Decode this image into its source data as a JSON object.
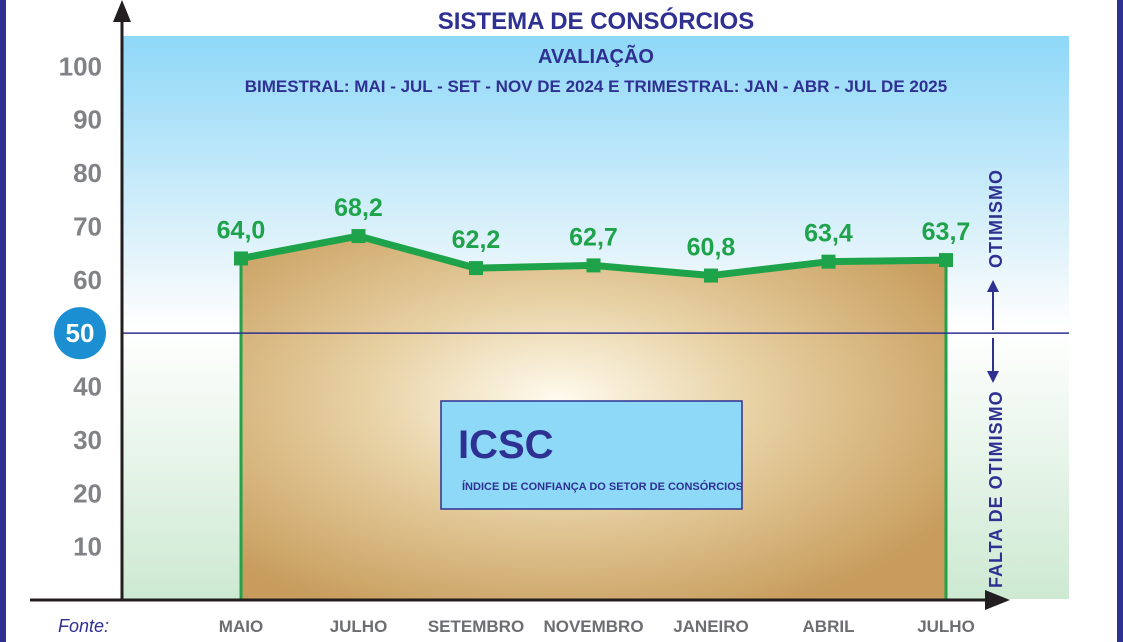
{
  "chart_data": {
    "type": "line",
    "title": "SISTEMA DE CONSÓRCIOS",
    "subtitle": "AVALIAÇÃO",
    "subtitle2": "BIMESTRAL: MAI - JUL - SET - NOV DE 2024 E TRIMESTRAL: JAN - ABR - JUL DE 2025",
    "categories": [
      "MAIO",
      "JULHO",
      "SETEMBRO",
      "NOVEMBRO",
      "JANEIRO",
      "ABRIL",
      "JULHO"
    ],
    "series": [
      {
        "values": [
          64.0,
          68.2,
          62.2,
          62.7,
          60.8,
          63.4,
          63.7
        ]
      }
    ],
    "value_labels": [
      "64,0",
      "68,2",
      "62,2",
      "62,7",
      "60,8",
      "63,4",
      "63,7"
    ],
    "yticks": [
      10,
      20,
      30,
      40,
      50,
      60,
      70,
      80,
      90,
      100
    ],
    "ylim": [
      0,
      110
    ],
    "reference_line": 50,
    "reference_label": "50",
    "box_title": "ICSC",
    "box_text": "ÍNDICE DE CONFIANÇA DO SETOR DE CONSÓRCIOS",
    "upper_zone_label": "OTIMISMO",
    "lower_zone_label": "FALTA DE OTIMISMO",
    "source_label": "Fonte:",
    "colors": {
      "line": "#1fa34a",
      "title": "#2e3192",
      "reference": "#2e3192",
      "sky_top": "#8ed8f8",
      "area": "#c8a064",
      "badge": "#1b8fd2"
    }
  }
}
